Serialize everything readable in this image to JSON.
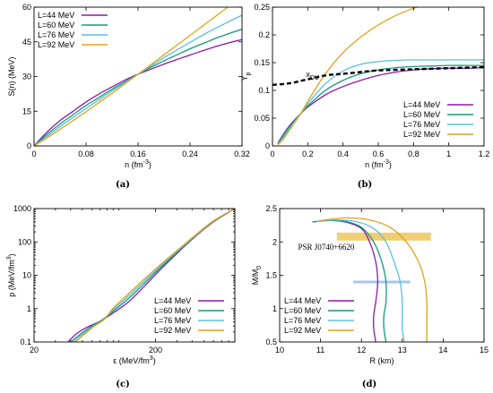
{
  "colors": {
    "L44": "#8b1aa8",
    "L60": "#139a7a",
    "L76": "#5bbfe0",
    "L92": "#e4a11a",
    "bar": "#eec55a",
    "hbar": "#a9c4ee"
  },
  "chart_data": [
    {
      "type": "line",
      "caption": "(a)",
      "xlabel": "n  (fm",
      "xlabel_sup": "-3",
      "xlabel_tail": ")",
      "ylabel": "S(n)  (MeV)",
      "xlim": [
        0,
        0.32
      ],
      "ylim": [
        0,
        60
      ],
      "xticks": [
        0,
        0.08,
        0.16,
        0.24,
        0.32
      ],
      "xtick_labels": [
        "0",
        "0.08",
        "0.16",
        "0.24",
        "0.32"
      ],
      "yticks": [
        0,
        15,
        30,
        45,
        60
      ],
      "ytick_labels": [
        "0",
        "15",
        "30",
        "45",
        "60"
      ],
      "legend_position": "top-left",
      "series": [
        {
          "name": "L=44 MeV",
          "color_key": "L44",
          "x": [
            0,
            0.02,
            0.04,
            0.06,
            0.08,
            0.1,
            0.12,
            0.14,
            0.16,
            0.18,
            0.2,
            0.22,
            0.24,
            0.26,
            0.28,
            0.3,
            0.32
          ],
          "y": [
            0,
            6,
            11,
            15,
            19,
            22.5,
            25.5,
            28.5,
            31,
            33.2,
            35.4,
            37.4,
            39.3,
            41.2,
            43,
            44.6,
            46
          ]
        },
        {
          "name": "L=60 MeV",
          "color_key": "L60",
          "x": [
            0,
            0.02,
            0.04,
            0.06,
            0.08,
            0.1,
            0.12,
            0.14,
            0.16,
            0.18,
            0.2,
            0.22,
            0.24,
            0.26,
            0.28,
            0.3,
            0.32
          ],
          "y": [
            0,
            5,
            9.5,
            13.5,
            17.5,
            21,
            24.5,
            27.8,
            31,
            34,
            36.8,
            39.4,
            42,
            44.3,
            46.6,
            48.6,
            50.5
          ]
        },
        {
          "name": "L=76 MeV",
          "color_key": "L76",
          "x": [
            0,
            0.02,
            0.04,
            0.06,
            0.08,
            0.1,
            0.12,
            0.14,
            0.16,
            0.18,
            0.2,
            0.22,
            0.24,
            0.26,
            0.28,
            0.3,
            0.32
          ],
          "y": [
            0,
            4.2,
            8.4,
            12.3,
            16.2,
            20,
            23.8,
            27.4,
            31,
            34.6,
            38.2,
            41.5,
            44.8,
            48,
            51,
            53.8,
            56.5
          ]
        },
        {
          "name": "L=92 MeV",
          "color_key": "L92",
          "x": [
            0,
            0.02,
            0.04,
            0.06,
            0.08,
            0.1,
            0.12,
            0.14,
            0.16,
            0.18,
            0.2,
            0.22,
            0.24,
            0.26,
            0.28,
            0.3
          ],
          "y": [
            0,
            3.5,
            7.2,
            11,
            14.8,
            18.8,
            22.8,
            26.9,
            31,
            35.2,
            39.4,
            43.6,
            47.8,
            52,
            56.2,
            60.4
          ]
        }
      ]
    },
    {
      "type": "line",
      "caption": "(b)",
      "xlabel": "n  (fm",
      "xlabel_sup": "-3",
      "xlabel_tail": ")",
      "ylabel": "Y",
      "ylabel_sub": "p",
      "xlim": [
        0,
        1.2
      ],
      "ylim": [
        0,
        0.25
      ],
      "xticks": [
        0,
        0.2,
        0.4,
        0.6,
        0.8,
        1,
        1.2
      ],
      "xtick_labels": [
        "0",
        "0.2",
        "0.4",
        "0.6",
        "0.8",
        "1",
        "1.2"
      ],
      "yticks": [
        0,
        0.05,
        0.1,
        0.15,
        0.2,
        0.25
      ],
      "ytick_labels": [
        "0",
        "0.05",
        "0.1",
        "0.15",
        "0.2",
        "0.25"
      ],
      "legend_position": "bottom-right",
      "annotation": "x",
      "annotation_sub": "DU",
      "series": [
        {
          "name": "L=44 MeV",
          "color_key": "L44",
          "x": [
            0.03,
            0.06,
            0.1,
            0.16,
            0.2,
            0.3,
            0.4,
            0.5,
            0.6,
            0.7,
            0.8,
            0.9,
            1.0,
            1.1,
            1.2
          ],
          "y": [
            0.005,
            0.02,
            0.038,
            0.058,
            0.07,
            0.092,
            0.107,
            0.118,
            0.127,
            0.133,
            0.137,
            0.139,
            0.14,
            0.14,
            0.141
          ]
        },
        {
          "name": "L=60 MeV",
          "color_key": "L60",
          "x": [
            0.03,
            0.06,
            0.1,
            0.16,
            0.2,
            0.3,
            0.4,
            0.5,
            0.6,
            0.7,
            0.8,
            0.9,
            1.0,
            1.1,
            1.2
          ],
          "y": [
            0.004,
            0.018,
            0.036,
            0.058,
            0.072,
            0.1,
            0.118,
            0.13,
            0.137,
            0.141,
            0.143,
            0.144,
            0.145,
            0.145,
            0.145
          ]
        },
        {
          "name": "L=76 MeV",
          "color_key": "L76",
          "x": [
            0.03,
            0.06,
            0.1,
            0.16,
            0.2,
            0.3,
            0.4,
            0.5,
            0.6,
            0.7,
            0.8,
            0.9,
            1.0,
            1.1,
            1.2
          ],
          "y": [
            0.003,
            0.015,
            0.033,
            0.058,
            0.076,
            0.112,
            0.135,
            0.147,
            0.152,
            0.154,
            0.155,
            0.155,
            0.155,
            0.155,
            0.155
          ]
        },
        {
          "name": "L=92 MeV",
          "color_key": "L92",
          "x": [
            0.03,
            0.06,
            0.1,
            0.16,
            0.2,
            0.3,
            0.4,
            0.5,
            0.6,
            0.7,
            0.8,
            0.85
          ],
          "y": [
            0.002,
            0.012,
            0.03,
            0.058,
            0.08,
            0.13,
            0.168,
            0.196,
            0.218,
            0.235,
            0.248,
            0.252
          ]
        },
        {
          "name": "x_DU",
          "dashed": true,
          "color": "#000000",
          "x": [
            0,
            0.1,
            0.2,
            0.3,
            0.4,
            0.5,
            0.6,
            0.8,
            1.0,
            1.2
          ],
          "y": [
            0.11,
            0.113,
            0.12,
            0.127,
            0.13,
            0.133,
            0.136,
            0.138,
            0.14,
            0.142
          ]
        }
      ]
    },
    {
      "type": "line",
      "caption": "(c)",
      "log_x": true,
      "log_y": true,
      "xlabel": "ε  (MeV/fm",
      "xlabel_sup": "3",
      "xlabel_tail": ")",
      "ylabel": "p  (MeV/fm",
      "ylabel_sup": "3",
      "ylabel_tail": ")",
      "xlim": [
        20,
        900
      ],
      "ylim": [
        0.1,
        1000
      ],
      "xticks": [
        20,
        200
      ],
      "xtick_labels": [
        "20",
        "200"
      ],
      "yticks": [
        0.1,
        1,
        10,
        100,
        1000
      ],
      "ytick_labels": [
        "0.1",
        "1",
        "10",
        "100",
        "1000"
      ],
      "legend_position": "bottom-right",
      "series": [
        {
          "name": "L=44 MeV",
          "color_key": "L44",
          "x": [
            38,
            45,
            55,
            70,
            90,
            120,
            160,
            220,
            300,
            420,
            600,
            900
          ],
          "y": [
            0.1,
            0.18,
            0.28,
            0.42,
            0.75,
            1.6,
            4.5,
            15,
            45,
            140,
            400,
            1000
          ]
        },
        {
          "name": "L=60 MeV",
          "color_key": "L60",
          "x": [
            40,
            48,
            58,
            72,
            90,
            120,
            160,
            220,
            300,
            420,
            600,
            900
          ],
          "y": [
            0.1,
            0.17,
            0.28,
            0.45,
            0.85,
            2,
            5.5,
            17,
            48,
            145,
            410,
            1000
          ]
        },
        {
          "name": "L=76 MeV",
          "color_key": "L76",
          "x": [
            42,
            50,
            60,
            74,
            90,
            120,
            160,
            220,
            300,
            420,
            600,
            900
          ],
          "y": [
            0.1,
            0.17,
            0.28,
            0.46,
            0.95,
            2.4,
            6.5,
            19,
            52,
            150,
            420,
            1000
          ]
        },
        {
          "name": "L=92 MeV",
          "color_key": "L92",
          "x": [
            44,
            52,
            62,
            76,
            90,
            120,
            160,
            220,
            300,
            420,
            600,
            900
          ],
          "y": [
            0.1,
            0.17,
            0.29,
            0.48,
            1.05,
            2.8,
            7.5,
            21,
            55,
            155,
            430,
            1000
          ]
        }
      ]
    },
    {
      "type": "line",
      "caption": "(d)",
      "xlabel": "R  (km)",
      "ylabel": "M/M",
      "ylabel_sub": "0",
      "xlim": [
        10,
        15
      ],
      "ylim": [
        0.5,
        2.5
      ],
      "xticks": [
        10,
        11,
        12,
        13,
        14,
        15
      ],
      "xtick_labels": [
        "10",
        "11",
        "12",
        "13",
        "14",
        "15"
      ],
      "yticks": [
        0.5,
        1,
        1.5,
        2,
        2.5
      ],
      "ytick_labels": [
        "0.5",
        "1",
        "1.5",
        "2",
        "2.5"
      ],
      "legend_position": "bottom-left",
      "annotation": "PSR J0740+6620",
      "series": [
        {
          "name": "L=44 MeV",
          "color_key": "L44",
          "x": [
            10.8,
            11.2,
            11.6,
            12,
            12.2,
            12.35,
            12.4,
            12.35,
            12.3,
            12.3,
            12.35
          ],
          "y": [
            2.3,
            2.32,
            2.3,
            2.2,
            2.0,
            1.7,
            1.4,
            1.1,
            0.9,
            0.7,
            0.5
          ]
        },
        {
          "name": "L=60 MeV",
          "color_key": "L60",
          "x": [
            10.8,
            11.2,
            11.6,
            12,
            12.3,
            12.5,
            12.6,
            12.6,
            12.55,
            12.55,
            12.6
          ],
          "y": [
            2.3,
            2.32,
            2.31,
            2.22,
            2.0,
            1.7,
            1.4,
            1.1,
            0.9,
            0.7,
            0.5
          ]
        },
        {
          "name": "L=76 MeV",
          "color_key": "L76",
          "x": [
            10.9,
            11.4,
            11.9,
            12.3,
            12.6,
            12.8,
            12.95,
            13.0,
            13.0,
            13.0,
            13.05
          ],
          "y": [
            2.31,
            2.33,
            2.3,
            2.2,
            2.0,
            1.7,
            1.4,
            1.1,
            0.9,
            0.7,
            0.5
          ]
        },
        {
          "name": "L=92 MeV",
          "color_key": "L92",
          "x": [
            11.0,
            11.6,
            12.2,
            12.7,
            13.1,
            13.4,
            13.55,
            13.6,
            13.6,
            13.6,
            13.6
          ],
          "y": [
            2.32,
            2.36,
            2.33,
            2.22,
            2.0,
            1.7,
            1.4,
            1.1,
            0.9,
            0.7,
            0.5
          ]
        }
      ],
      "band_mass": [
        2.02,
        2.14
      ],
      "band_radius": [
        11.4,
        13.7
      ],
      "hbar_mass": 1.4,
      "hbar_radius": [
        11.8,
        13.2
      ]
    }
  ]
}
